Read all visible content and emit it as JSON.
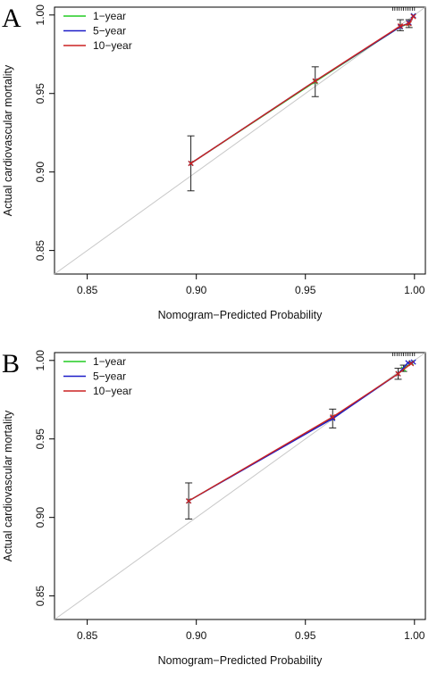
{
  "chart_data": [
    {
      "type": "line",
      "panel_label": "A",
      "xlabel": "Nomogram−Predicted Probability",
      "ylabel": "Actual cardiovascular mortality",
      "xlim": [
        0.835,
        1.005
      ],
      "ylim": [
        0.835,
        1.005
      ],
      "xticks": [
        "0.85",
        "0.90",
        "0.95",
        "1.00"
      ],
      "yticks": [
        "0.85",
        "0.90",
        "0.95",
        "1.00"
      ],
      "reference_line": true,
      "legend_position": "top-left",
      "series": [
        {
          "name": "1−year",
          "color": "#22cc22",
          "x": [
            0.8975,
            0.9545,
            0.9935,
            0.9975,
            0.9995
          ],
          "y": [
            0.9055,
            0.9575,
            0.9925,
            0.9945,
            0.9995
          ]
        },
        {
          "name": "5−year",
          "color": "#1c1cc8",
          "x": [
            0.8975,
            0.9545,
            0.9935,
            0.9975,
            0.9995
          ],
          "y": [
            0.9055,
            0.958,
            0.9925,
            0.995,
            0.9995
          ]
        },
        {
          "name": "10−year",
          "color": "#cc2222",
          "x": [
            0.8975,
            0.9545,
            0.9935,
            0.9975,
            0.9995
          ],
          "y": [
            0.9055,
            0.958,
            0.993,
            0.9945,
            0.999
          ]
        }
      ],
      "error_bars": [
        {
          "x": 0.8975,
          "low": 0.888,
          "high": 0.923
        },
        {
          "x": 0.9545,
          "low": 0.948,
          "high": 0.967
        },
        {
          "x": 0.9935,
          "low": 0.99,
          "high": 0.997
        },
        {
          "x": 0.9975,
          "low": 0.992,
          "high": 0.997
        }
      ]
    },
    {
      "type": "line",
      "panel_label": "B",
      "xlabel": "Nomogram−Predicted Probability",
      "ylabel": "Actual cardiovascular mortality",
      "xlim": [
        0.835,
        1.005
      ],
      "ylim": [
        0.835,
        1.005
      ],
      "xticks": [
        "0.85",
        "0.90",
        "0.95",
        "1.00"
      ],
      "yticks": [
        "0.85",
        "0.90",
        "0.95",
        "1.00"
      ],
      "reference_line": true,
      "legend_position": "top-left",
      "series": [
        {
          "name": "1−year",
          "color": "#22cc22",
          "x": [
            0.8965,
            0.9625,
            0.9925,
            0.995,
            0.9985
          ],
          "y": [
            0.9105,
            0.9635,
            0.9915,
            0.9945,
            0.9985
          ]
        },
        {
          "name": "5−year",
          "color": "#1c1cc8",
          "x": [
            0.8965,
            0.9625,
            0.9925,
            0.997,
            0.9995
          ],
          "y": [
            0.9105,
            0.963,
            0.9915,
            0.9985,
            0.999
          ]
        },
        {
          "name": "10−year",
          "color": "#cc2222",
          "x": [
            0.8965,
            0.9625,
            0.9925,
            0.9985
          ],
          "y": [
            0.9105,
            0.964,
            0.9915,
            0.998
          ]
        }
      ],
      "error_bars": [
        {
          "x": 0.8965,
          "low": 0.899,
          "high": 0.922
        },
        {
          "x": 0.9625,
          "low": 0.957,
          "high": 0.969
        },
        {
          "x": 0.9925,
          "low": 0.988,
          "high": 0.995
        },
        {
          "x": 0.995,
          "low": 0.993,
          "high": 0.997
        }
      ]
    }
  ]
}
